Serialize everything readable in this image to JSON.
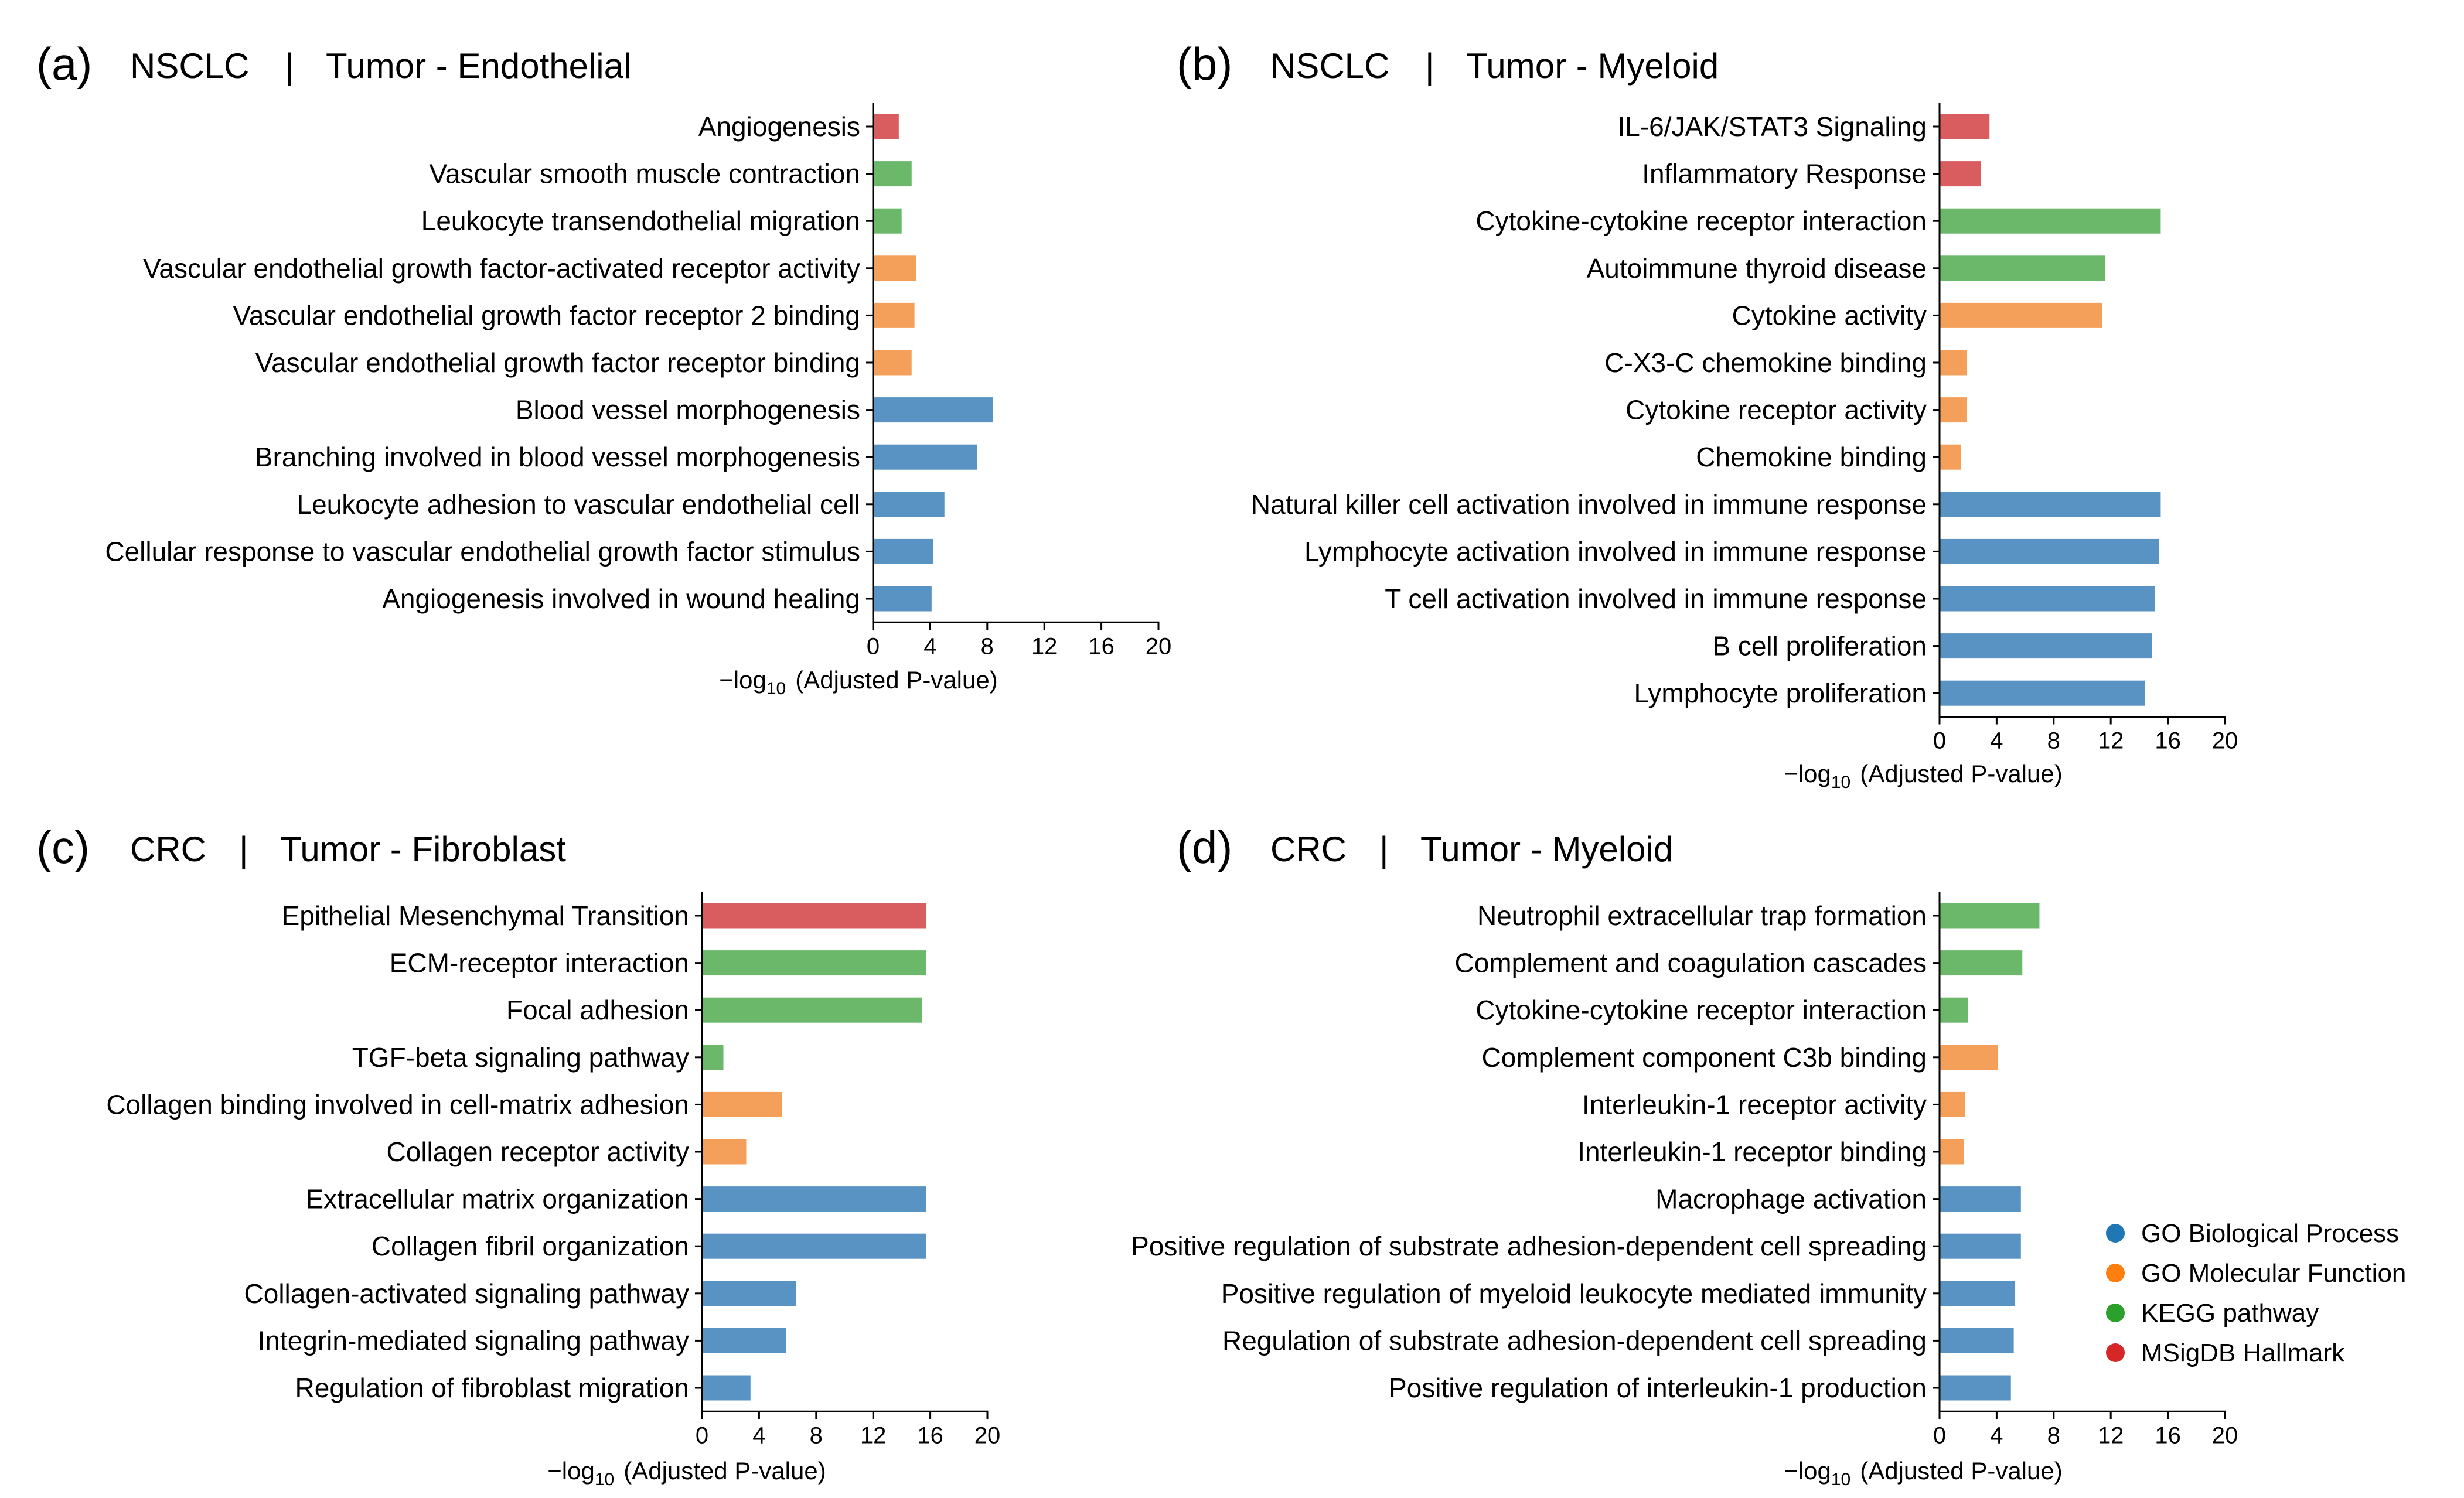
{
  "chart_data": [
    {
      "type": "bar",
      "orientation": "horizontal",
      "panel": "(a)",
      "title": "NSCLC",
      "separator": "|",
      "subtitle": "Tumor - Endothelial",
      "xlabel_main": "−log",
      "xlabel_sub": "10",
      "xlabel_rest": "(Adjusted P-value)",
      "xlim": [
        0,
        20
      ],
      "xticks": [
        "0",
        "4",
        "8",
        "12",
        "16",
        "20"
      ],
      "categories": [
        "Angiogenesis",
        "Vascular smooth muscle contraction",
        "Leukocyte transendothelial migration",
        "Vascular endothelial growth factor-activated receptor activity",
        "Vascular endothelial growth factor receptor 2 binding",
        "Vascular endothelial growth factor receptor binding",
        "Blood vessel morphogenesis",
        "Branching involved in blood vessel morphogenesis",
        "Leukocyte adhesion to vascular endothelial cell",
        "Cellular response to vascular endothelial growth factor stimulus",
        "Angiogenesis involved in wound healing"
      ],
      "values": [
        1.8,
        2.7,
        2.0,
        3.0,
        2.9,
        2.7,
        8.4,
        7.3,
        5.0,
        4.2,
        4.1
      ],
      "groups": [
        "MSigDB Hallmark",
        "KEGG pathway",
        "KEGG pathway",
        "GO Molecular Function",
        "GO Molecular Function",
        "GO Molecular Function",
        "GO Biological Process",
        "GO Biological Process",
        "GO Biological Process",
        "GO Biological Process",
        "GO Biological Process"
      ]
    },
    {
      "type": "bar",
      "orientation": "horizontal",
      "panel": "(b)",
      "title": "NSCLC",
      "separator": "|",
      "subtitle": "Tumor - Myeloid",
      "xlabel_main": "−log",
      "xlabel_sub": "10",
      "xlabel_rest": "(Adjusted P-value)",
      "xlim": [
        0,
        20
      ],
      "xticks": [
        "0",
        "4",
        "8",
        "12",
        "16",
        "20"
      ],
      "categories": [
        "IL-6/JAK/STAT3 Signaling",
        "Inflammatory Response",
        "Cytokine-cytokine receptor interaction",
        "Autoimmune thyroid disease",
        "Cytokine activity",
        "C-X3-C chemokine binding",
        "Cytokine receptor activity",
        "Chemokine binding",
        "Natural killer cell activation involved in immune response",
        "Lymphocyte activation involved in immune response",
        "T cell activation involved in immune response",
        "B cell proliferation",
        "Lymphocyte proliferation"
      ],
      "values": [
        3.5,
        2.9,
        15.5,
        11.6,
        11.4,
        1.9,
        1.9,
        1.5,
        15.5,
        15.4,
        15.1,
        14.9,
        14.4
      ],
      "groups": [
        "MSigDB Hallmark",
        "MSigDB Hallmark",
        "KEGG pathway",
        "KEGG pathway",
        "GO Molecular Function",
        "GO Molecular Function",
        "GO Molecular Function",
        "GO Molecular Function",
        "GO Biological Process",
        "GO Biological Process",
        "GO Biological Process",
        "GO Biological Process",
        "GO Biological Process"
      ]
    },
    {
      "type": "bar",
      "orientation": "horizontal",
      "panel": "(c)",
      "title": "CRC",
      "separator": "|",
      "subtitle": "Tumor - Fibroblast",
      "xlabel_main": "−log",
      "xlabel_sub": "10",
      "xlabel_rest": "(Adjusted P-value)",
      "xlim": [
        0,
        20
      ],
      "xticks": [
        "0",
        "4",
        "8",
        "12",
        "16",
        "20"
      ],
      "categories": [
        "Epithelial Mesenchymal Transition",
        "ECM-receptor interaction",
        "Focal adhesion",
        "TGF-beta signaling pathway",
        "Collagen binding involved in cell-matrix adhesion",
        "Collagen receptor activity",
        "Extracellular matrix organization",
        "Collagen fibril organization",
        "Collagen-activated signaling pathway",
        "Integrin-mediated signaling pathway",
        "Regulation of fibroblast migration"
      ],
      "values": [
        15.7,
        15.7,
        15.4,
        1.5,
        5.6,
        3.1,
        15.7,
        15.7,
        6.6,
        5.9,
        3.4
      ],
      "groups": [
        "MSigDB Hallmark",
        "KEGG pathway",
        "KEGG pathway",
        "KEGG pathway",
        "GO Molecular Function",
        "GO Molecular Function",
        "GO Biological Process",
        "GO Biological Process",
        "GO Biological Process",
        "GO Biological Process",
        "GO Biological Process"
      ]
    },
    {
      "type": "bar",
      "orientation": "horizontal",
      "panel": "(d)",
      "title": "CRC",
      "separator": "|",
      "subtitle": "Tumor - Myeloid",
      "xlabel_main": "−log",
      "xlabel_sub": "10",
      "xlabel_rest": "(Adjusted P-value)",
      "xlim": [
        0,
        20
      ],
      "xticks": [
        "0",
        "4",
        "8",
        "12",
        "16",
        "20"
      ],
      "categories": [
        "Neutrophil extracellular trap formation",
        "Complement and coagulation cascades",
        "Cytokine-cytokine receptor interaction",
        "Complement component C3b binding",
        "Interleukin-1 receptor activity",
        "Interleukin-1 receptor binding",
        "Macrophage activation",
        "Positive regulation of substrate adhesion-dependent cell spreading",
        "Positive regulation of myeloid leukocyte mediated immunity",
        "Regulation of substrate adhesion-dependent cell spreading",
        "Positive regulation of interleukin-1 production"
      ],
      "values": [
        7.0,
        5.8,
        2.0,
        4.1,
        1.8,
        1.7,
        5.7,
        5.7,
        5.3,
        5.2,
        5.0
      ],
      "groups": [
        "KEGG pathway",
        "KEGG pathway",
        "KEGG pathway",
        "GO Molecular Function",
        "GO Molecular Function",
        "GO Molecular Function",
        "GO Biological Process",
        "GO Biological Process",
        "GO Biological Process",
        "GO Biological Process",
        "GO Biological Process"
      ]
    }
  ],
  "legend": {
    "placement": "bottom-right",
    "items": [
      {
        "label": "GO Biological Process",
        "color": "#1f77b4"
      },
      {
        "label": "GO Molecular Function",
        "color": "#ff7f0e"
      },
      {
        "label": "KEGG pathway",
        "color": "#2ca02c"
      },
      {
        "label": "MSigDB Hallmark",
        "color": "#d62728"
      }
    ]
  },
  "bar_colors": {
    "GO Biological Process": "#5893c3",
    "GO Molecular Function": "#f4a05b",
    "KEGG pathway": "#6bb86b",
    "MSigDB Hallmark": "#d95c5e"
  }
}
